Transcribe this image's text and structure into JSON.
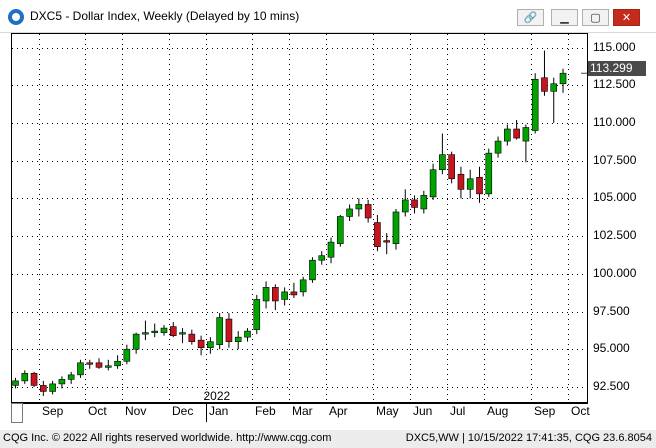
{
  "window": {
    "title": "DXC5 - Dollar Index, Weekly (Delayed by 10 mins)",
    "button_icons": [
      "link-icon",
      "minimize-icon",
      "maximize-icon",
      "close-icon"
    ]
  },
  "colors": {
    "up": "#00a300",
    "down": "#c8141e",
    "wick": "#000000",
    "last_price_bg": "#4a4a4a",
    "grid": "#000000"
  },
  "chart_data": {
    "type": "candlestick",
    "ylim": [
      91.5,
      115.9
    ],
    "price_ticks": [
      92.5,
      95.0,
      97.5,
      100.0,
      102.5,
      105.0,
      107.5,
      110.0,
      112.5,
      115.0
    ],
    "price_tick_labels": [
      "92.500",
      "95.000",
      "97.500",
      "100.000",
      "102.500",
      "105.000",
      "107.500",
      "110.000",
      "112.500",
      "115.000"
    ],
    "last_price": "113.299",
    "last_value": 113.299,
    "year_label": "2022",
    "months": [
      {
        "label": "Sep",
        "week": 3
      },
      {
        "label": "Oct",
        "week": 8
      },
      {
        "label": "Nov",
        "week": 12
      },
      {
        "label": "Dec",
        "week": 17
      },
      {
        "label": "Jan",
        "week": 21
      },
      {
        "label": "Feb",
        "week": 26
      },
      {
        "label": "Mar",
        "week": 30
      },
      {
        "label": "Apr",
        "week": 34
      },
      {
        "label": "May",
        "week": 39
      },
      {
        "label": "Jun",
        "week": 43
      },
      {
        "label": "Jul",
        "week": 47
      },
      {
        "label": "Aug",
        "week": 51
      },
      {
        "label": "Sep",
        "week": 56
      },
      {
        "label": "Oct",
        "week": 60
      }
    ],
    "year_week": 21,
    "candles": [
      {
        "o": 92.6,
        "h": 93.1,
        "l": 92.4,
        "c": 92.9
      },
      {
        "o": 92.9,
        "h": 93.6,
        "l": 92.7,
        "c": 93.4
      },
      {
        "o": 93.4,
        "h": 93.5,
        "l": 92.5,
        "c": 92.6
      },
      {
        "o": 92.6,
        "h": 92.9,
        "l": 91.9,
        "c": 92.2
      },
      {
        "o": 92.2,
        "h": 92.9,
        "l": 92.0,
        "c": 92.7
      },
      {
        "o": 92.7,
        "h": 93.2,
        "l": 92.4,
        "c": 93.0
      },
      {
        "o": 93.0,
        "h": 93.5,
        "l": 92.7,
        "c": 93.3
      },
      {
        "o": 93.3,
        "h": 94.3,
        "l": 93.1,
        "c": 94.1
      },
      {
        "o": 94.1,
        "h": 94.3,
        "l": 93.7,
        "c": 94.0
      },
      {
        "o": 94.1,
        "h": 94.4,
        "l": 93.7,
        "c": 93.8
      },
      {
        "o": 93.8,
        "h": 94.3,
        "l": 93.6,
        "c": 93.9
      },
      {
        "o": 93.9,
        "h": 94.6,
        "l": 93.7,
        "c": 94.2
      },
      {
        "o": 94.2,
        "h": 95.3,
        "l": 94.0,
        "c": 95.0
      },
      {
        "o": 95.0,
        "h": 96.1,
        "l": 94.7,
        "c": 96.0
      },
      {
        "o": 96.0,
        "h": 96.9,
        "l": 95.6,
        "c": 96.1
      },
      {
        "o": 96.1,
        "h": 96.7,
        "l": 95.8,
        "c": 96.2
      },
      {
        "o": 96.1,
        "h": 96.6,
        "l": 95.9,
        "c": 96.4
      },
      {
        "o": 96.5,
        "h": 96.8,
        "l": 95.8,
        "c": 95.9
      },
      {
        "o": 96.0,
        "h": 96.4,
        "l": 95.4,
        "c": 96.1
      },
      {
        "o": 96.0,
        "h": 96.3,
        "l": 95.3,
        "c": 95.5
      },
      {
        "o": 95.6,
        "h": 95.9,
        "l": 94.6,
        "c": 95.1
      },
      {
        "o": 95.1,
        "h": 95.8,
        "l": 94.7,
        "c": 95.5
      },
      {
        "o": 95.3,
        "h": 97.4,
        "l": 95.0,
        "c": 97.1
      },
      {
        "o": 97.0,
        "h": 97.4,
        "l": 95.1,
        "c": 95.5
      },
      {
        "o": 95.5,
        "h": 96.2,
        "l": 95.0,
        "c": 95.8
      },
      {
        "o": 95.8,
        "h": 96.4,
        "l": 95.5,
        "c": 96.2
      },
      {
        "o": 96.3,
        "h": 98.6,
        "l": 96.0,
        "c": 98.3
      },
      {
        "o": 98.2,
        "h": 99.5,
        "l": 97.7,
        "c": 99.1
      },
      {
        "o": 99.1,
        "h": 99.3,
        "l": 97.6,
        "c": 98.2
      },
      {
        "o": 98.3,
        "h": 99.1,
        "l": 97.9,
        "c": 98.8
      },
      {
        "o": 98.8,
        "h": 99.4,
        "l": 98.4,
        "c": 98.6
      },
      {
        "o": 98.8,
        "h": 99.8,
        "l": 98.5,
        "c": 99.6
      },
      {
        "o": 99.6,
        "h": 101.1,
        "l": 99.4,
        "c": 100.9
      },
      {
        "o": 100.9,
        "h": 101.5,
        "l": 100.6,
        "c": 101.2
      },
      {
        "o": 101.1,
        "h": 102.4,
        "l": 100.7,
        "c": 102.1
      },
      {
        "o": 102.0,
        "h": 103.9,
        "l": 101.8,
        "c": 103.8
      },
      {
        "o": 103.8,
        "h": 104.6,
        "l": 103.5,
        "c": 104.3
      },
      {
        "o": 104.3,
        "h": 105.0,
        "l": 103.8,
        "c": 104.6
      },
      {
        "o": 104.6,
        "h": 104.9,
        "l": 103.4,
        "c": 103.7
      },
      {
        "o": 103.4,
        "h": 103.9,
        "l": 101.5,
        "c": 101.8
      },
      {
        "o": 102.2,
        "h": 102.7,
        "l": 101.3,
        "c": 102.1
      },
      {
        "o": 102.0,
        "h": 104.3,
        "l": 101.6,
        "c": 104.1
      },
      {
        "o": 104.1,
        "h": 105.6,
        "l": 103.8,
        "c": 104.9
      },
      {
        "o": 104.9,
        "h": 105.2,
        "l": 104.0,
        "c": 104.4
      },
      {
        "o": 104.3,
        "h": 105.5,
        "l": 104.0,
        "c": 105.2
      },
      {
        "o": 105.1,
        "h": 107.3,
        "l": 104.9,
        "c": 106.9
      },
      {
        "o": 106.9,
        "h": 109.3,
        "l": 106.6,
        "c": 107.9
      },
      {
        "o": 107.9,
        "h": 108.1,
        "l": 106.0,
        "c": 106.3
      },
      {
        "o": 106.6,
        "h": 107.1,
        "l": 105.0,
        "c": 105.6
      },
      {
        "o": 105.6,
        "h": 106.9,
        "l": 105.0,
        "c": 106.3
      },
      {
        "o": 106.4,
        "h": 107.1,
        "l": 104.7,
        "c": 105.3
      },
      {
        "o": 105.3,
        "h": 108.3,
        "l": 105.1,
        "c": 108.0
      },
      {
        "o": 108.0,
        "h": 109.1,
        "l": 107.7,
        "c": 108.8
      },
      {
        "o": 108.8,
        "h": 109.9,
        "l": 108.5,
        "c": 109.6
      },
      {
        "o": 109.6,
        "h": 110.2,
        "l": 108.9,
        "c": 109.0
      },
      {
        "o": 108.8,
        "h": 109.9,
        "l": 107.4,
        "c": 109.7
      },
      {
        "o": 109.5,
        "h": 113.3,
        "l": 109.3,
        "c": 112.9
      },
      {
        "o": 113.0,
        "h": 114.8,
        "l": 111.8,
        "c": 112.1
      },
      {
        "o": 112.1,
        "h": 113.0,
        "l": 110.0,
        "c": 112.6
      },
      {
        "o": 112.6,
        "h": 113.6,
        "l": 112.0,
        "c": 113.3
      }
    ]
  },
  "footer": {
    "left": "CQG Inc. © 2022 All rights reserved worldwide. http://www.cqg.com",
    "right": "DXC5,WW | 10/15/2022 17:41:35, CQG 23.6.8054"
  }
}
